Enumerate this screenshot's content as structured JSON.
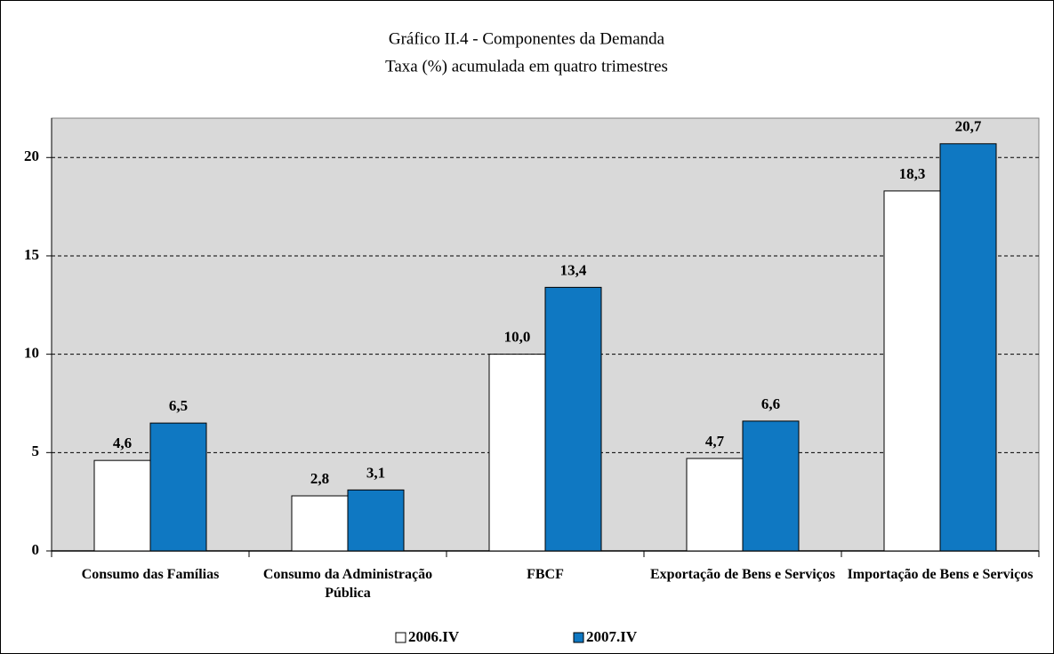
{
  "chart_data": {
    "type": "bar",
    "title": "Gráfico II.4 - Componentes da Demanda",
    "subtitle": "Taxa (%) acumulada em quatro trimestres",
    "categories": [
      "Consumo das Famílias",
      "Consumo da Administração Pública",
      "FBCF",
      "Exportação de Bens e Serviços",
      "Importação de Bens e Serviços"
    ],
    "series": [
      {
        "name": "2006.IV",
        "color": "#ffffff",
        "values": [
          4.6,
          2.8,
          10.0,
          4.7,
          18.3
        ],
        "value_labels": [
          "4,6",
          "2,8",
          "10,0",
          "4,7",
          "18,3"
        ]
      },
      {
        "name": "2007.IV",
        "color": "#0f78c2",
        "values": [
          6.5,
          3.1,
          13.4,
          6.6,
          20.7
        ],
        "value_labels": [
          "6,5",
          "3,1",
          "13,4",
          "6,6",
          "20,7"
        ]
      }
    ],
    "ylim": [
      0,
      22
    ],
    "yticks": [
      0,
      5,
      10,
      15,
      20
    ],
    "grid": true,
    "legend": "bottom"
  }
}
